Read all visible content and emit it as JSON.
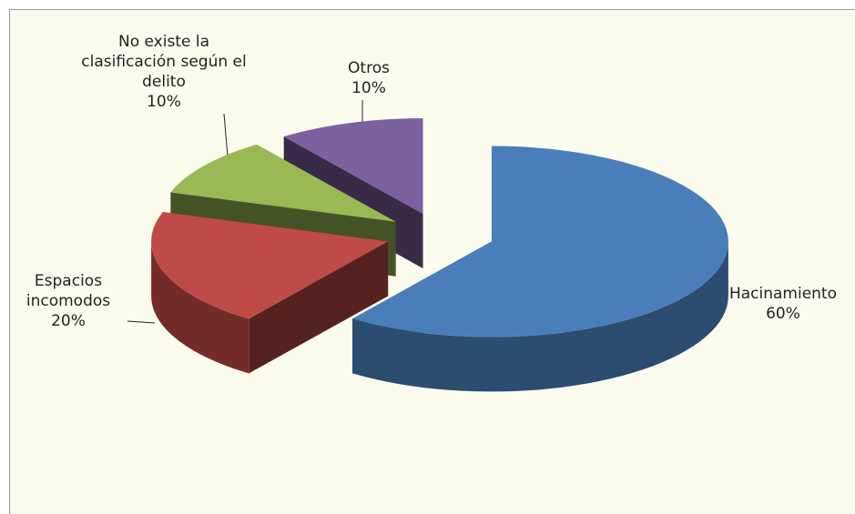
{
  "chart_data": {
    "type": "pie",
    "categories": [
      "Hacinamiento",
      "Espacios incomodos",
      "No existe la clasificación según el delito",
      "Otros"
    ],
    "values": [
      60,
      20,
      10,
      10
    ],
    "value_labels": [
      "60%",
      "20%",
      "10%",
      "10%"
    ],
    "colors": [
      "#4a7ebb",
      "#be4b48",
      "#98b954",
      "#7d60a0"
    ]
  }
}
